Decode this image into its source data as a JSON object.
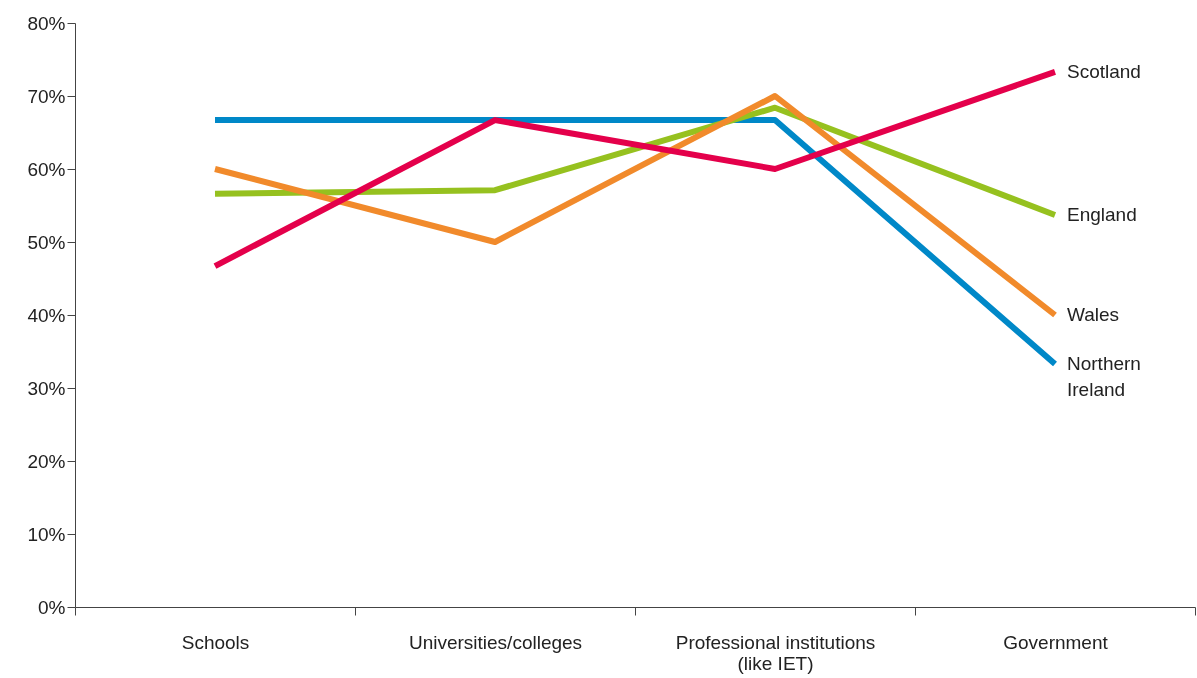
{
  "chart_data": {
    "type": "line",
    "categories": [
      "Schools",
      "Universities/colleges",
      "Professional institutions\n(like IET)",
      "Government"
    ],
    "series": [
      {
        "name": "Northern Ireland",
        "color": "#0088c8",
        "values": [
          66.7,
          66.7,
          66.7,
          33.3
        ]
      },
      {
        "name": "England",
        "color": "#96c11f",
        "values": [
          56.6,
          57.1,
          68.4,
          53.7
        ]
      },
      {
        "name": "Wales",
        "color": "#f18a2b",
        "values": [
          60,
          50,
          70,
          40
        ]
      },
      {
        "name": "Scotland",
        "color": "#e4004b",
        "values": [
          46.7,
          66.7,
          60,
          73.3
        ]
      }
    ],
    "ylim": [
      0,
      80
    ],
    "yticks": [
      {
        "value": 0,
        "label": "0%"
      },
      {
        "value": 10,
        "label": "10%"
      },
      {
        "value": 20,
        "label": "20%"
      },
      {
        "value": 30,
        "label": "30%"
      },
      {
        "value": 40,
        "label": "40%"
      },
      {
        "value": 50,
        "label": "50%"
      },
      {
        "value": 60,
        "label": "60%"
      },
      {
        "value": 70,
        "label": "70%"
      },
      {
        "value": 80,
        "label": "80%"
      }
    ],
    "grid": false,
    "legend": false,
    "marker": "none",
    "line_style": "solid"
  }
}
